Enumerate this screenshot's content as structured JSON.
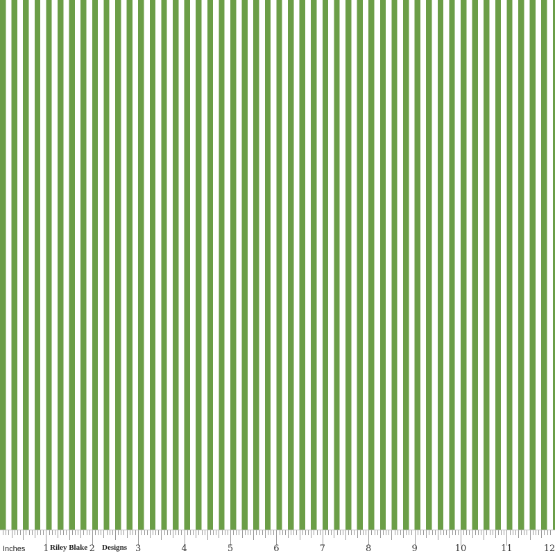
{
  "fabric": {
    "pattern": "vertical stripes",
    "stripe_color": "#6b9e47",
    "background_color": "#ffffff",
    "stripes_per_inch": 4
  },
  "ruler": {
    "unit_label": "Inches",
    "numbers": [
      "1",
      "2",
      "3",
      "4",
      "5",
      "6",
      "7",
      "8",
      "9",
      "10",
      "11",
      "12"
    ],
    "brand_left": "Riley Blake",
    "brand_right": "Designs"
  }
}
